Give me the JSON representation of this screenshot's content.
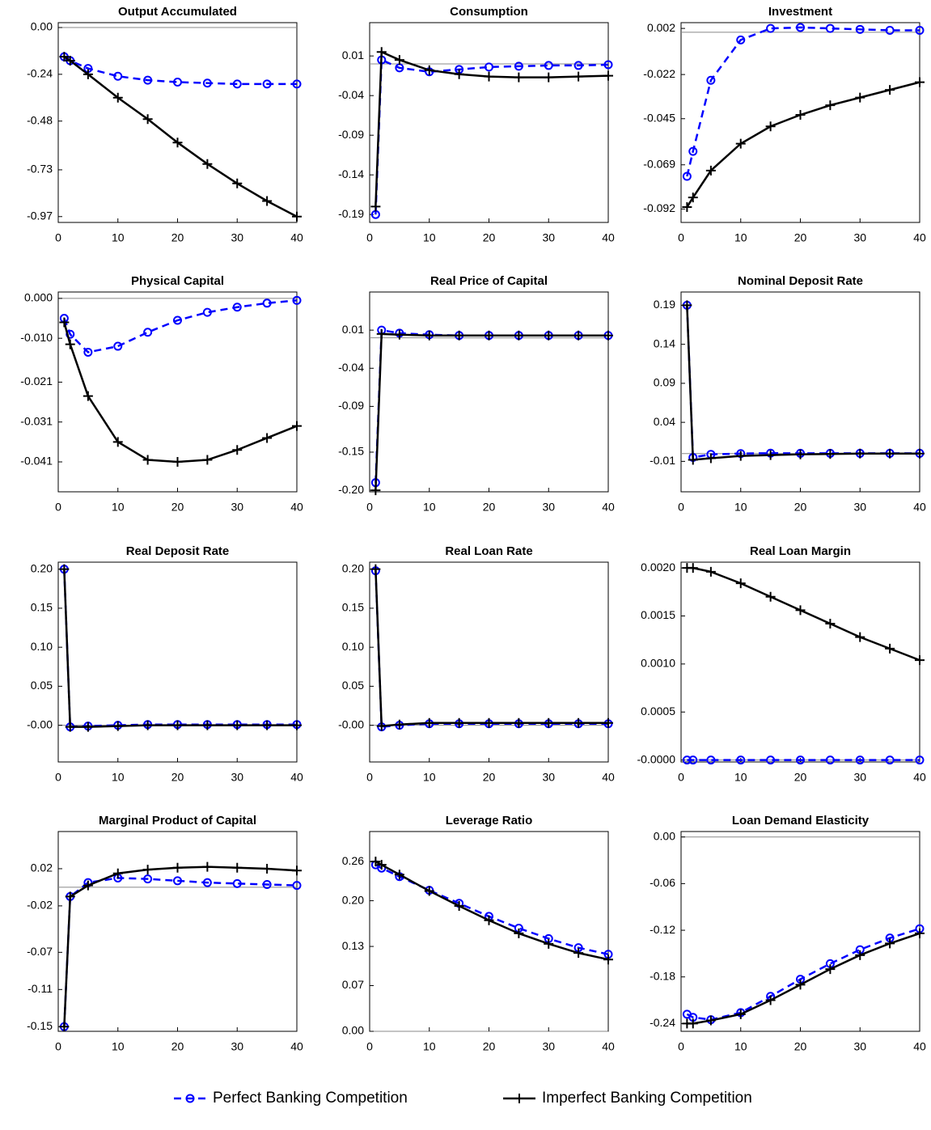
{
  "chart_data": [
    {
      "type": "line",
      "title": "Output Accumulated",
      "x": [
        1,
        2,
        5,
        10,
        15,
        20,
        25,
        30,
        35,
        40
      ],
      "series": [
        {
          "values": [
            -0.15,
            -0.17,
            -0.21,
            -0.25,
            -0.27,
            -0.28,
            -0.285,
            -0.29,
            -0.29,
            -0.29
          ]
        },
        {
          "values": [
            -0.15,
            -0.17,
            -0.24,
            -0.36,
            -0.47,
            -0.59,
            -0.7,
            -0.8,
            -0.89,
            -0.97
          ]
        }
      ],
      "xlim": [
        0,
        40
      ],
      "xticks": [
        0,
        10,
        20,
        30,
        40
      ],
      "ylim": [
        -1.0,
        0.025
      ],
      "yticks": [
        {
          "value": 0,
          "label": "0.00"
        },
        -0.24,
        -0.48,
        -0.73,
        -0.97
      ]
    },
    {
      "type": "line",
      "title": "Consumption",
      "x": [
        1,
        2,
        5,
        10,
        15,
        20,
        25,
        30,
        35,
        40
      ],
      "series": [
        {
          "values": [
            -0.19,
            0.005,
            -0.005,
            -0.01,
            -0.007,
            -0.004,
            -0.003,
            -0.002,
            -0.002,
            -0.001
          ]
        },
        {
          "values": [
            -0.18,
            0.015,
            0.005,
            -0.008,
            -0.013,
            -0.016,
            -0.017,
            -0.017,
            -0.016,
            -0.015
          ]
        }
      ],
      "xlim": [
        0,
        40
      ],
      "xticks": [
        0,
        10,
        20,
        30,
        40
      ],
      "ylim": [
        -0.2,
        0.052
      ],
      "yticks": [
        0.01,
        -0.04,
        -0.09,
        -0.14,
        -0.19
      ]
    },
    {
      "type": "line",
      "title": "Investment",
      "x": [
        1,
        2,
        5,
        10,
        15,
        20,
        25,
        30,
        35,
        40
      ],
      "series": [
        {
          "values": [
            -0.075,
            -0.062,
            -0.025,
            -0.004,
            0.002,
            0.0025,
            0.002,
            0.0015,
            0.001,
            0.001
          ]
        },
        {
          "values": [
            -0.091,
            -0.086,
            -0.072,
            -0.058,
            -0.049,
            -0.043,
            -0.038,
            -0.034,
            -0.03,
            -0.026
          ]
        }
      ],
      "xlim": [
        0,
        40
      ],
      "xticks": [
        0,
        10,
        20,
        30,
        40
      ],
      "ylim": [
        -0.099,
        0.005
      ],
      "yticks": [
        0.002,
        -0.022,
        -0.045,
        -0.069,
        -0.092
      ]
    },
    {
      "type": "line",
      "title": "Physical Capital",
      "x": [
        1,
        2,
        5,
        10,
        15,
        20,
        25,
        30,
        35,
        40
      ],
      "series": [
        {
          "values": [
            -0.005,
            -0.009,
            -0.0135,
            -0.012,
            -0.0085,
            -0.0055,
            -0.0035,
            -0.0022,
            -0.0012,
            -0.0005
          ]
        },
        {
          "values": [
            -0.006,
            -0.0115,
            -0.0245,
            -0.036,
            -0.0405,
            -0.041,
            -0.0405,
            -0.038,
            -0.035,
            -0.032
          ]
        }
      ],
      "xlim": [
        0,
        40
      ],
      "xticks": [
        0,
        10,
        20,
        30,
        40
      ],
      "ylim": [
        -0.0485,
        0.0016
      ],
      "yticks": [
        {
          "value": 0,
          "label": "0.000"
        },
        {
          "value": -0.01,
          "label": "-0.010"
        },
        -0.021,
        -0.031,
        -0.041
      ]
    },
    {
      "type": "line",
      "title": "Real Price of Capital",
      "x": [
        1,
        2,
        5,
        10,
        15,
        20,
        25,
        30,
        35,
        40
      ],
      "series": [
        {
          "values": [
            -0.19,
            0.01,
            0.006,
            0.004,
            0.003,
            0.003,
            0.003,
            0.003,
            0.003,
            0.003
          ]
        },
        {
          "values": [
            -0.2,
            0.005,
            0.004,
            0.003,
            0.003,
            0.003,
            0.003,
            0.003,
            0.003,
            0.003
          ]
        }
      ],
      "xlim": [
        0,
        40
      ],
      "xticks": [
        0,
        10,
        20,
        30,
        40
      ],
      "ylim": [
        -0.202,
        0.06
      ],
      "yticks": [
        0.01,
        -0.04,
        -0.09,
        -0.15,
        {
          "value": -0.2,
          "label": "-0.20"
        }
      ]
    },
    {
      "type": "line",
      "title": "Nominal Deposit Rate",
      "x": [
        1,
        2,
        5,
        10,
        15,
        20,
        25,
        30,
        35,
        40
      ],
      "series": [
        {
          "values": [
            0.19,
            -0.005,
            -0.001,
            0,
            0.0005,
            0.0003,
            0.0003,
            0.0003,
            0.0003,
            0.0003
          ]
        },
        {
          "values": [
            0.19,
            -0.008,
            -0.006,
            -0.003,
            -0.002,
            -0.001,
            -0.0005,
            0,
            0,
            0
          ]
        }
      ],
      "xlim": [
        0,
        40
      ],
      "xticks": [
        0,
        10,
        20,
        30,
        40
      ],
      "ylim": [
        -0.049,
        0.207
      ],
      "yticks": [
        0.19,
        0.14,
        0.09,
        0.04,
        -0.01
      ]
    },
    {
      "type": "line",
      "title": "Real Deposit Rate",
      "x": [
        1,
        2,
        5,
        10,
        15,
        20,
        25,
        30,
        35,
        40
      ],
      "series": [
        {
          "values": [
            0.2,
            -0.002,
            -0.001,
            0,
            0.001,
            0.001,
            0.001,
            0.001,
            0.001,
            0.001
          ]
        },
        {
          "values": [
            0.2,
            -0.002,
            -0.002,
            -0.001,
            0,
            0,
            0,
            0,
            0,
            0
          ]
        }
      ],
      "xlim": [
        0,
        40
      ],
      "xticks": [
        0,
        10,
        20,
        30,
        40
      ],
      "ylim": [
        -0.047,
        0.209
      ],
      "yticks": [
        {
          "value": 0.2,
          "label": "0.20"
        },
        0.15,
        {
          "value": 0.1,
          "label": "0.10"
        },
        0.05,
        {
          "value": 0,
          "label": "-0.00"
        }
      ]
    },
    {
      "type": "line",
      "title": "Real Loan Rate",
      "x": [
        1,
        2,
        5,
        10,
        15,
        20,
        25,
        30,
        35,
        40
      ],
      "series": [
        {
          "values": [
            0.198,
            -0.002,
            0,
            0.002,
            0.002,
            0.002,
            0.002,
            0.002,
            0.002,
            0.002
          ]
        },
        {
          "values": [
            0.2,
            -0.001,
            0.001,
            0.003,
            0.003,
            0.003,
            0.003,
            0.003,
            0.003,
            0.003
          ]
        }
      ],
      "xlim": [
        0,
        40
      ],
      "xticks": [
        0,
        10,
        20,
        30,
        40
      ],
      "ylim": [
        -0.047,
        0.209
      ],
      "yticks": [
        {
          "value": 0.2,
          "label": "0.20"
        },
        0.15,
        {
          "value": 0.1,
          "label": "0.10"
        },
        0.05,
        {
          "value": 0,
          "label": "-0.00"
        }
      ]
    },
    {
      "type": "line",
      "title": "Real Loan Margin",
      "x": [
        1,
        2,
        5,
        10,
        15,
        20,
        25,
        30,
        35,
        40
      ],
      "series": [
        {
          "values": [
            0,
            0,
            0,
            0,
            0,
            0,
            0,
            0,
            0,
            0
          ]
        },
        {
          "values": [
            0.002,
            0.002,
            0.00196,
            0.00184,
            0.0017,
            0.00156,
            0.00142,
            0.00128,
            0.00116,
            0.00104
          ]
        }
      ],
      "xlim": [
        0,
        40
      ],
      "xticks": [
        0,
        10,
        20,
        30,
        40
      ],
      "ylim": [
        -2e-05,
        0.00206
      ],
      "yticks": [
        {
          "value": 0.002,
          "label": "0.0020"
        },
        0.0015,
        {
          "value": 0.001,
          "label": "0.0010"
        },
        0.0005,
        {
          "value": 0,
          "label": "-0.0000"
        }
      ]
    },
    {
      "type": "line",
      "title": "Marginal Product of Capital",
      "x": [
        1,
        2,
        5,
        10,
        15,
        20,
        25,
        30,
        35,
        40
      ],
      "series": [
        {
          "values": [
            -0.15,
            -0.01,
            0.005,
            0.01,
            0.009,
            0.007,
            0.005,
            0.004,
            0.003,
            0.002
          ]
        },
        {
          "values": [
            -0.15,
            -0.01,
            0.002,
            0.015,
            0.019,
            0.021,
            0.022,
            0.021,
            0.02,
            0.018
          ]
        }
      ],
      "xlim": [
        0,
        40
      ],
      "xticks": [
        0,
        10,
        20,
        30,
        40
      ],
      "ylim": [
        -0.155,
        0.06
      ],
      "yticks": [
        0.02,
        -0.02,
        -0.07,
        -0.11,
        -0.15
      ]
    },
    {
      "type": "line",
      "title": "Leverage Ratio",
      "x": [
        1,
        2,
        5,
        10,
        15,
        20,
        25,
        30,
        35,
        40
      ],
      "series": [
        {
          "values": [
            0.255,
            0.25,
            0.237,
            0.216,
            0.196,
            0.176,
            0.158,
            0.142,
            0.128,
            0.118
          ]
        },
        {
          "values": [
            0.26,
            0.255,
            0.24,
            0.215,
            0.192,
            0.17,
            0.15,
            0.134,
            0.12,
            0.11
          ]
        }
      ],
      "xlim": [
        0,
        40
      ],
      "xticks": [
        0,
        10,
        20,
        30,
        40
      ],
      "ylim": [
        0,
        0.306
      ],
      "yticks": [
        0.26,
        {
          "value": 0.2,
          "label": "0.20"
        },
        0.13,
        0.07,
        {
          "value": 0,
          "label": "0.00"
        }
      ]
    },
    {
      "type": "line",
      "title": "Loan Demand Elasticity",
      "x": [
        1,
        2,
        5,
        10,
        15,
        20,
        25,
        30,
        35,
        40
      ],
      "series": [
        {
          "values": [
            -0.228,
            -0.232,
            -0.235,
            -0.226,
            -0.205,
            -0.183,
            -0.163,
            -0.145,
            -0.13,
            -0.118
          ]
        },
        {
          "values": [
            -0.24,
            -0.24,
            -0.236,
            -0.228,
            -0.21,
            -0.19,
            -0.17,
            -0.152,
            -0.137,
            -0.124
          ]
        }
      ],
      "xlim": [
        0,
        40
      ],
      "xticks": [
        0,
        10,
        20,
        30,
        40
      ],
      "ylim": [
        -0.25,
        0.007
      ],
      "yticks": [
        {
          "value": 0,
          "label": "0.00"
        },
        -0.06,
        -0.12,
        -0.18,
        -0.24
      ]
    }
  ],
  "legend": [
    {
      "name": "Perfect Banking Competition",
      "color": "#0000ff",
      "dash": true,
      "marker": "circle"
    },
    {
      "name": "Imperfect Banking Competition",
      "color": "#000000",
      "dash": false,
      "marker": "plus"
    }
  ]
}
